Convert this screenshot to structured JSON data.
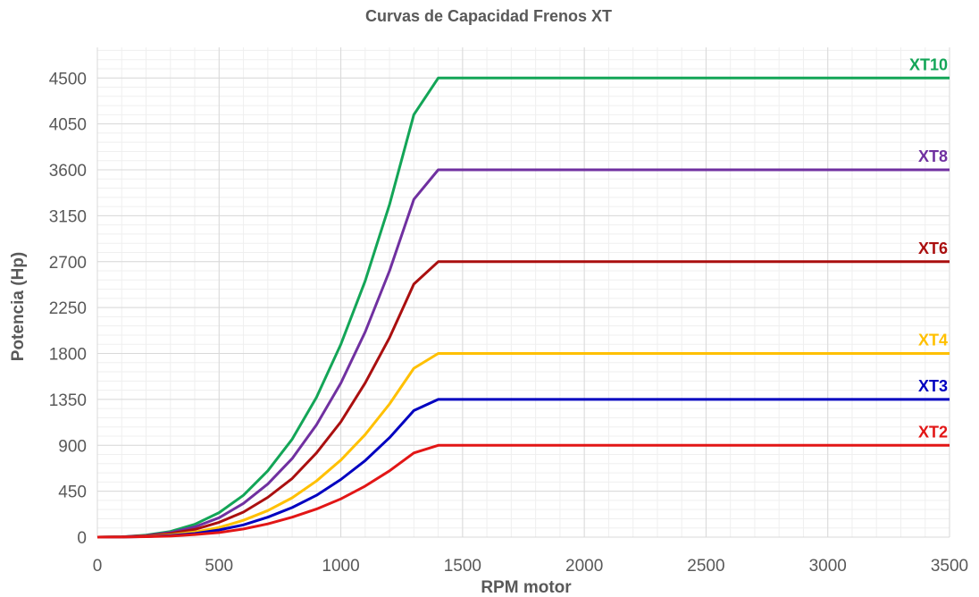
{
  "chart_data": {
    "type": "line",
    "title": "Curvas de Capacidad Frenos XT",
    "xlabel": "RPM motor",
    "ylabel": "Potencia (Hp)",
    "xlim": [
      0,
      3500
    ],
    "ylim": [
      0,
      4800
    ],
    "xticks": [
      0,
      500,
      1000,
      1500,
      2000,
      2500,
      3000,
      3500
    ],
    "yticks": [
      0,
      450,
      900,
      1350,
      1800,
      2250,
      2700,
      3150,
      3600,
      4050,
      4500
    ],
    "grid": true,
    "legend": "series names labeled at right end of each line",
    "x": [
      0,
      100,
      200,
      300,
      400,
      500,
      600,
      700,
      800,
      900,
      1000,
      1100,
      1200,
      1300,
      1400,
      3500
    ],
    "series": [
      {
        "name": "XT10",
        "color": "#13a557",
        "values": [
          0,
          3,
          20,
          55,
          125,
          240,
          410,
          650,
          960,
          1370,
          1890,
          2510,
          3260,
          4140,
          4500,
          4500
        ]
      },
      {
        "name": "XT8",
        "color": "#7030a0",
        "values": [
          0,
          2,
          15,
          45,
          100,
          190,
          330,
          520,
          770,
          1100,
          1510,
          2010,
          2610,
          3310,
          3600,
          3600
        ]
      },
      {
        "name": "XT6",
        "color": "#aa0f0f",
        "values": [
          0,
          2,
          12,
          35,
          75,
          145,
          245,
          390,
          575,
          825,
          1130,
          1510,
          1955,
          2480,
          2700,
          2700
        ]
      },
      {
        "name": "XT4",
        "color": "#ffc000",
        "values": [
          0,
          1,
          8,
          22,
          50,
          95,
          165,
          260,
          385,
          550,
          755,
          1005,
          1305,
          1655,
          1800,
          1800
        ]
      },
      {
        "name": "XT3",
        "color": "#0000c0",
        "values": [
          0,
          1,
          5,
          15,
          35,
          70,
          120,
          195,
          290,
          410,
          565,
          750,
          975,
          1240,
          1350,
          1350
        ]
      },
      {
        "name": "XT2",
        "color": "#e21616",
        "values": [
          0,
          1,
          4,
          10,
          25,
          45,
          80,
          130,
          195,
          275,
          375,
          500,
          650,
          825,
          900,
          900
        ]
      }
    ]
  }
}
